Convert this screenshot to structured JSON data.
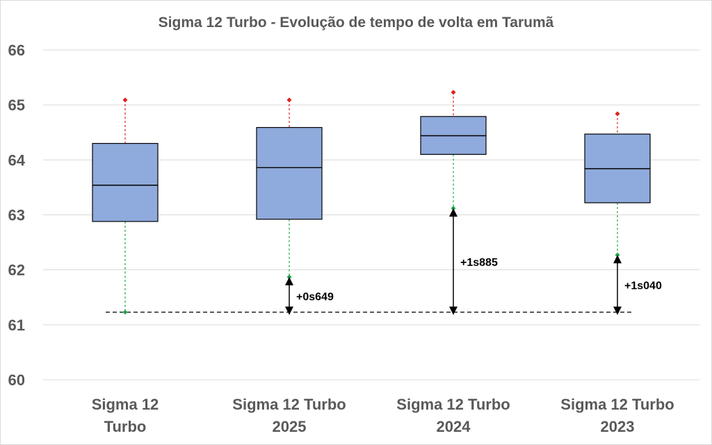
{
  "chart_data": {
    "type": "box",
    "title": "Sigma 12 Turbo - Evolução de tempo de volta em Tarumã",
    "xlabel": "",
    "ylabel": "",
    "ylim": [
      60,
      66
    ],
    "yticks": [
      "60",
      "61",
      "62",
      "63",
      "64",
      "65",
      "66"
    ],
    "grid": true,
    "categories": [
      [
        "Sigma 12",
        "Turbo"
      ],
      [
        "Sigma 12 Turbo",
        "2025"
      ],
      [
        "Sigma 12 Turbo",
        "2024"
      ],
      [
        "Sigma 12 Turbo",
        "2023"
      ]
    ],
    "boxes": [
      {
        "min": 61.23,
        "q1": 62.88,
        "median": 63.54,
        "q3": 64.3,
        "max": 65.09
      },
      {
        "min": 61.87,
        "q1": 62.92,
        "median": 63.86,
        "q3": 64.59,
        "max": 65.09
      },
      {
        "min": 63.12,
        "q1": 64.1,
        "median": 64.44,
        "q3": 64.79,
        "max": 65.23
      },
      {
        "min": 62.27,
        "q1": 63.22,
        "median": 63.84,
        "q3": 64.47,
        "max": 64.84
      }
    ],
    "reference_line": {
      "value": 61.23,
      "style": "dashed"
    },
    "annotations": [
      {
        "category_index": 1,
        "text": "+0s649"
      },
      {
        "category_index": 2,
        "text": "+1s885"
      },
      {
        "category_index": 3,
        "text": "+1s040"
      }
    ],
    "colors": {
      "box_fill": "#8faadc",
      "box_stroke": "#000000",
      "upper_whisker": "#e0201b",
      "lower_whisker": "#1fa64a",
      "grid": "#d9d9d9",
      "text": "#595959"
    }
  }
}
